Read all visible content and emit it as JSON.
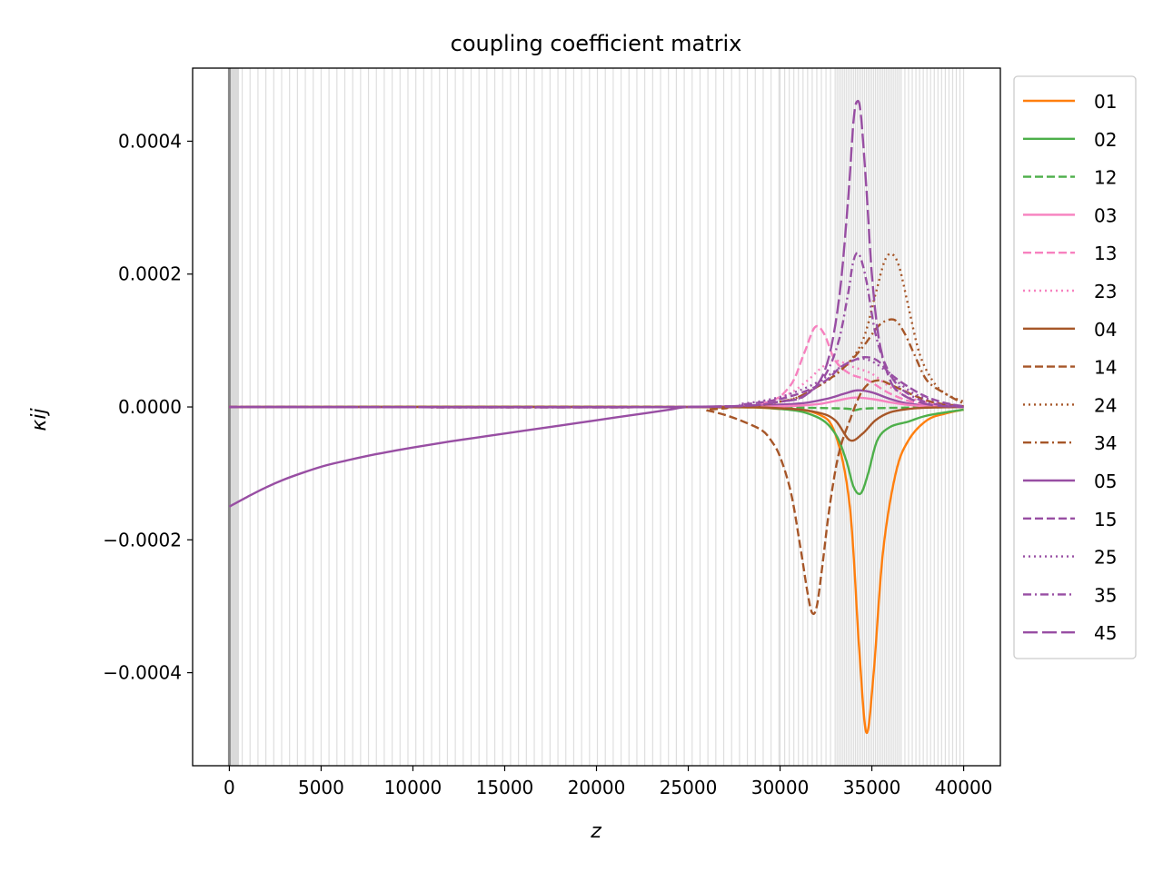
{
  "chart_data": {
    "type": "line",
    "title": "coupling coefficient matrix",
    "xlabel": "z",
    "ylabel": "κij",
    "xlim": [
      -2000,
      42000
    ],
    "ylim": [
      -0.00054,
      0.00051
    ],
    "xticks": [
      0,
      5000,
      10000,
      15000,
      20000,
      25000,
      30000,
      35000,
      40000
    ],
    "yticks": [
      {
        "value": 0.0004,
        "label": "0.0004"
      },
      {
        "value": 0.0002,
        "label": "0.0002"
      },
      {
        "value": 0.0,
        "label": "0.0000"
      },
      {
        "value": -0.0002,
        "label": "−0.0002"
      },
      {
        "value": -0.0004,
        "label": "−0.0004"
      }
    ],
    "legend_position": "outside-right",
    "grid": "vertical gray lines at segment boundaries",
    "series": [
      {
        "name": "01",
        "color": "#ff7f0e",
        "dash": "solid",
        "x": [
          25000,
          30000,
          32000,
          33000,
          33800,
          34300,
          34700,
          35100,
          35600,
          36300,
          37000,
          38000,
          39000,
          40000
        ],
        "y": [
          0,
          -3e-06,
          -1e-05,
          -4e-05,
          -0.00015,
          -0.00036,
          -0.00049,
          -0.0004,
          -0.00022,
          -0.0001,
          -5e-05,
          -2e-05,
          -1e-05,
          -4e-06
        ]
      },
      {
        "name": "02",
        "color": "#4daf4a",
        "dash": "solid",
        "x": [
          25000,
          30000,
          32000,
          33000,
          33600,
          34000,
          34400,
          34800,
          35300,
          36000,
          37000,
          38000,
          40000
        ],
        "y": [
          0,
          -3e-06,
          -1.5e-05,
          -4e-05,
          -8e-05,
          -0.00012,
          -0.00013,
          -0.0001,
          -5e-05,
          -3e-05,
          -2.2e-05,
          -1.3e-05,
          -4e-06
        ]
      },
      {
        "name": "12",
        "color": "#4daf4a",
        "dash": "dashed",
        "x": [
          25000,
          33000,
          34000,
          35000,
          40000
        ],
        "y": [
          0,
          -2e-06,
          -5e-06,
          -2e-06,
          0
        ]
      },
      {
        "name": "03",
        "color": "#f781bf",
        "dash": "solid",
        "x": [
          25000,
          30000,
          32000,
          33000,
          34000,
          35000,
          36000,
          37000,
          38000,
          40000
        ],
        "y": [
          0,
          1e-06,
          4e-06,
          9e-06,
          1.4e-05,
          1.2e-05,
          7e-06,
          3e-06,
          1e-06,
          0
        ]
      },
      {
        "name": "13",
        "color": "#f781bf",
        "dash": "dashed",
        "x": [
          25000,
          29000,
          30500,
          31300,
          31900,
          32400,
          33000,
          33800,
          34800,
          36000,
          37500,
          40000
        ],
        "y": [
          0,
          5e-06,
          3e-05,
          8e-05,
          0.00012,
          0.00011,
          7e-05,
          5e-05,
          4e-05,
          2e-05,
          6e-06,
          1e-06
        ]
      },
      {
        "name": "23",
        "color": "#f781bf",
        "dash": "dotted",
        "x": [
          25000,
          29000,
          30500,
          31500,
          32300,
          33000,
          34000,
          35000,
          36000,
          37500,
          40000
        ],
        "y": [
          0,
          5e-06,
          2e-05,
          4e-05,
          6e-05,
          7e-05,
          6e-05,
          5e-05,
          3e-05,
          1e-05,
          1e-06
        ]
      },
      {
        "name": "04",
        "color": "#a65628",
        "dash": "solid",
        "x": [
          25000,
          30000,
          32000,
          33000,
          33800,
          34500,
          35200,
          36000,
          37000,
          38000,
          40000
        ],
        "y": [
          0,
          -2e-06,
          -8e-06,
          -2e-05,
          -5e-05,
          -4e-05,
          -2e-05,
          -8e-06,
          -3e-06,
          -1e-06,
          0
        ]
      },
      {
        "name": "14",
        "color": "#a65628",
        "dash": "dashed",
        "x": [
          25000,
          26000,
          27000,
          28000,
          29000,
          29500,
          30000,
          30600,
          31100,
          31500,
          31750,
          32000,
          32300,
          32700,
          33200,
          33800,
          34500,
          35300,
          36300,
          37500,
          38500,
          40000
        ],
        "y": [
          0,
          -5e-06,
          -1.2e-05,
          -2.2e-05,
          -3.5e-05,
          -5e-05,
          -7.5e-05,
          -0.00013,
          -0.00021,
          -0.00028,
          -0.00031,
          -0.0003,
          -0.00024,
          -0.00015,
          -7e-05,
          -2e-05,
          2.5e-05,
          4e-05,
          3e-05,
          1.5e-05,
          6e-06,
          1e-06
        ]
      },
      {
        "name": "24",
        "color": "#a65628",
        "dash": "dotted",
        "x": [
          25000,
          30000,
          32000,
          33500,
          34500,
          35200,
          35700,
          36100,
          36500,
          37000,
          37600,
          38300,
          39000,
          40000
        ],
        "y": [
          0,
          8e-06,
          3e-05,
          6e-05,
          0.0001,
          0.00017,
          0.00022,
          0.00023,
          0.00021,
          0.00015,
          8e-05,
          4e-05,
          2e-05,
          8e-06
        ]
      },
      {
        "name": "34",
        "color": "#a65628",
        "dash": "dashdot",
        "x": [
          25000,
          30000,
          32000,
          33500,
          34500,
          35300,
          35800,
          36300,
          36800,
          37300,
          38000,
          39000,
          40000
        ],
        "y": [
          0,
          8e-06,
          3e-05,
          6e-05,
          9e-05,
          0.00012,
          0.00013,
          0.00013,
          0.00011,
          8e-05,
          4e-05,
          2e-05,
          5e-06
        ]
      },
      {
        "name": "05",
        "color": "#984ea3",
        "dash": "solid",
        "x": [
          0,
          1000,
          2000,
          3000,
          4000,
          5000,
          6000,
          8000,
          10000,
          12000,
          14000,
          16000,
          18000,
          20000,
          22000,
          24000,
          25000,
          28000,
          31000,
          32500,
          33500,
          34200,
          35000,
          36000,
          37000,
          38500,
          40000
        ],
        "y": [
          -0.00015,
          -0.000135,
          -0.000121,
          -0.000109,
          -9.9e-05,
          -9e-05,
          -8.3e-05,
          -7.1e-05,
          -6.1e-05,
          -5.2e-05,
          -4.4e-05,
          -3.6e-05,
          -2.8e-05,
          -2e-05,
          -1.2e-05,
          -4e-06,
          0,
          1.5e-06,
          5e-06,
          1.2e-05,
          2e-05,
          2.5e-05,
          2.2e-05,
          1.2e-05,
          5e-06,
          1e-06,
          0
        ]
      },
      {
        "name": "15",
        "color": "#984ea3",
        "dash": "dashed",
        "x": [
          25000,
          28000,
          30000,
          31500,
          32500,
          33300,
          34000,
          34600,
          35300,
          36000,
          37000,
          38000,
          39000,
          40000
        ],
        "y": [
          0,
          4e-06,
          1.2e-05,
          2.5e-05,
          4e-05,
          6e-05,
          7e-05,
          7.5e-05,
          7e-05,
          5e-05,
          3e-05,
          1.5e-05,
          6e-06,
          1e-06
        ]
      },
      {
        "name": "25",
        "color": "#984ea3",
        "dash": "dotted",
        "x": [
          25000,
          28000,
          30000,
          31500,
          32500,
          33300,
          34000,
          34700,
          35500,
          36300,
          37300,
          38300,
          39500,
          40000
        ],
        "y": [
          0,
          5e-06,
          1.5e-05,
          3e-05,
          4.5e-05,
          6e-05,
          7e-05,
          7.2e-05,
          6e-05,
          4e-05,
          2e-05,
          1e-05,
          3e-06,
          1e-06
        ]
      },
      {
        "name": "35",
        "color": "#984ea3",
        "dash": "dashdot",
        "x": [
          25000,
          30000,
          31500,
          32500,
          33200,
          33700,
          34000,
          34300,
          34700,
          35200,
          35800,
          36500,
          37500,
          38500,
          40000
        ],
        "y": [
          0,
          8e-06,
          2e-05,
          5e-05,
          0.0001,
          0.00017,
          0.00022,
          0.00023,
          0.00019,
          0.00011,
          6e-05,
          3e-05,
          1.2e-05,
          4e-06,
          0
        ]
      },
      {
        "name": "45",
        "color": "#984ea3",
        "dash": "longdash",
        "x": [
          25000,
          30000,
          31500,
          32500,
          33200,
          33700,
          34000,
          34200,
          34400,
          34700,
          35000,
          35400,
          36000,
          36600,
          37500,
          38500,
          40000
        ],
        "y": [
          0,
          8e-06,
          2e-05,
          6e-05,
          0.00016,
          0.00031,
          0.00043,
          0.00046,
          0.00044,
          0.00033,
          0.0002,
          0.0001,
          4e-05,
          2e-05,
          8e-06,
          2e-06,
          0
        ]
      }
    ]
  }
}
